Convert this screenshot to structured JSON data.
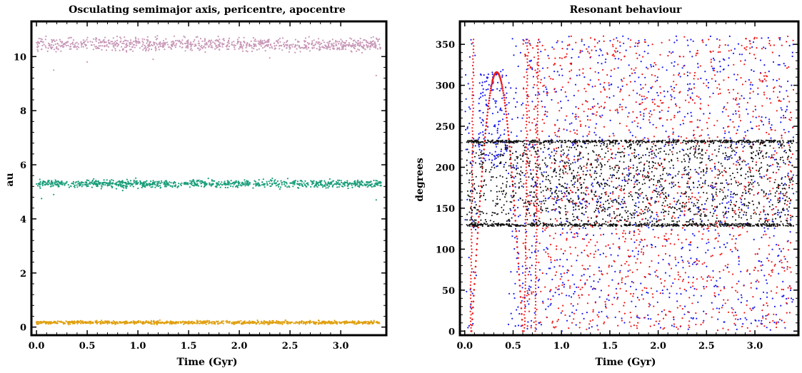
{
  "chart_data": [
    {
      "type": "scatter",
      "title": "Osculating semimajor axis, pericentre, apocentre",
      "xlabel": "Time (Gyr)",
      "ylabel": "au",
      "xlim": [
        -0.05,
        3.45
      ],
      "ylim": [
        -0.3,
        11.3
      ],
      "x_ticks": [
        {
          "value": 0.0,
          "label": "0.0"
        },
        {
          "value": 0.5,
          "label": "0.5"
        },
        {
          "value": 1.0,
          "label": "1.0"
        },
        {
          "value": 1.5,
          "label": "1.5"
        },
        {
          "value": 2.0,
          "label": "2.0"
        },
        {
          "value": 2.5,
          "label": "2.5"
        },
        {
          "value": 3.0,
          "label": "3.0"
        }
      ],
      "y_ticks": [
        {
          "value": 0,
          "label": "0"
        },
        {
          "value": 2,
          "label": "2"
        },
        {
          "value": 4,
          "label": "4"
        },
        {
          "value": 6,
          "label": "6"
        },
        {
          "value": 8,
          "label": "8"
        },
        {
          "value": 10,
          "label": "10"
        }
      ],
      "grid": false,
      "series": [
        {
          "color": "#c898b8",
          "y_center": 10.45,
          "y_spread": 0.12,
          "x_range": [
            0.0,
            3.4
          ],
          "outliers": [
            [
              0.17,
              9.5
            ],
            [
              0.5,
              9.8
            ],
            [
              1.15,
              9.9
            ],
            [
              2.3,
              9.95
            ],
            [
              3.35,
              9.3
            ]
          ]
        },
        {
          "color": "#1a9e7a",
          "y_center": 5.3,
          "y_spread": 0.07,
          "x_range": [
            0.0,
            3.4
          ],
          "outliers": [
            [
              0.05,
              4.75
            ],
            [
              0.17,
              4.9
            ],
            [
              0.85,
              5.05
            ],
            [
              2.4,
              5.1
            ],
            [
              3.35,
              4.7
            ]
          ]
        },
        {
          "color": "#e0a010",
          "y_center": 0.17,
          "y_spread": 0.03,
          "x_range": [
            0.0,
            3.4
          ],
          "outliers": []
        }
      ]
    },
    {
      "type": "scatter",
      "title": "Resonant behaviour",
      "xlabel": "Time (Gyr)",
      "ylabel": "degrees",
      "xlim": [
        -0.05,
        3.45
      ],
      "ylim": [
        -5,
        378
      ],
      "x_ticks": [
        {
          "value": 0.0,
          "label": "0.0"
        },
        {
          "value": 0.5,
          "label": "0.5"
        },
        {
          "value": 1.0,
          "label": "1.0"
        },
        {
          "value": 1.5,
          "label": "1.5"
        },
        {
          "value": 2.0,
          "label": "2.0"
        },
        {
          "value": 2.5,
          "label": "2.5"
        },
        {
          "value": 3.0,
          "label": "3.0"
        }
      ],
      "y_ticks": [
        {
          "value": 0,
          "label": "0"
        },
        {
          "value": 50,
          "label": "50"
        },
        {
          "value": 100,
          "label": "100"
        },
        {
          "value": 150,
          "label": "150"
        },
        {
          "value": 200,
          "label": "200"
        },
        {
          "value": 250,
          "label": "250"
        },
        {
          "value": 300,
          "label": "300"
        },
        {
          "value": 350,
          "label": "350"
        }
      ],
      "grid": false,
      "series": [
        {
          "color": "#1a1aee",
          "range": [
            0,
            360
          ]
        },
        {
          "color": "#ee1a1a",
          "range": [
            0,
            360
          ],
          "arc": {
            "x_start": 0.07,
            "x_peak": 0.33,
            "x_end": 0.6,
            "y_peak": 316
          }
        },
        {
          "color": "#111111",
          "range": [
            128,
            233
          ],
          "x_start": 0.02,
          "x_end": 3.4
        }
      ]
    }
  ]
}
